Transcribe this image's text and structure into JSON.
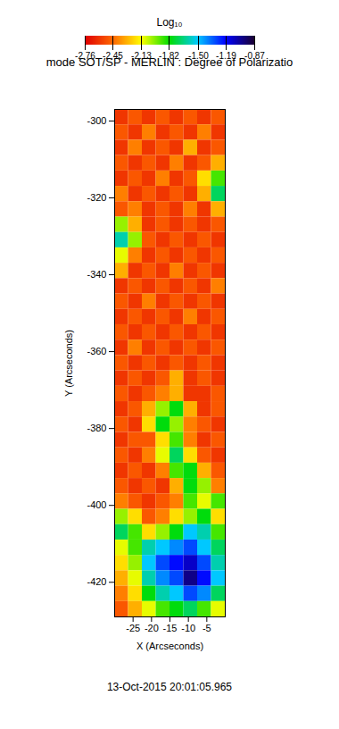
{
  "chart_data": {
    "type": "heatmap",
    "title": "mode SOT/SP - MERLIN : Degree of Polarizatio",
    "caption": "13-Oct-2015 20:01:05.965",
    "x_label": "X (Arcseconds)",
    "y_label": "Y (Arcseconds)",
    "xlim": [
      -30,
      0
    ],
    "ylim": [
      -429,
      -297
    ],
    "xticks": [
      -25,
      -20,
      -15,
      -10,
      -5
    ],
    "yticks": [
      -420,
      -400,
      -380,
      -360,
      -340,
      -320,
      -300
    ],
    "x_bins": [
      -30,
      -26.25,
      -22.5,
      -18.75,
      -15,
      -11.25,
      -7.5,
      -3.75,
      0
    ],
    "y_bins": [
      -297,
      -301,
      -305,
      -309,
      -313,
      -317,
      -321,
      -325,
      -329,
      -333,
      -337,
      -341,
      -345,
      -349,
      -353,
      -357,
      -361,
      -365,
      -369,
      -373,
      -377,
      -381,
      -385,
      -389,
      -393,
      -397,
      -401,
      -405,
      -409,
      -413,
      -417,
      -421,
      -425,
      -429
    ],
    "z": [
      [
        -2.6,
        -2.5,
        -2.6,
        -2.5,
        -2.6,
        -2.5,
        -2.6,
        -2.5
      ],
      [
        -2.5,
        -2.6,
        -2.4,
        -2.6,
        -2.5,
        -2.6,
        -2.4,
        -2.6
      ],
      [
        -2.6,
        -2.4,
        -2.6,
        -2.5,
        -2.6,
        -2.3,
        -2.6,
        -2.5
      ],
      [
        -2.5,
        -2.6,
        -2.5,
        -2.6,
        -2.4,
        -2.6,
        -2.5,
        -2.3
      ],
      [
        -2.6,
        -2.5,
        -2.6,
        -2.4,
        -2.6,
        -2.5,
        -2.2,
        -1.9
      ],
      [
        -2.4,
        -2.6,
        -2.5,
        -2.6,
        -2.5,
        -2.6,
        -2.3,
        -1.7
      ],
      [
        -2.5,
        -2.4,
        -2.6,
        -2.5,
        -2.6,
        -2.4,
        -2.6,
        -2.3
      ],
      [
        -2.0,
        -2.3,
        -2.6,
        -2.5,
        -2.6,
        -2.5,
        -2.6,
        -2.5
      ],
      [
        -1.6,
        -2.0,
        -2.5,
        -2.6,
        -2.5,
        -2.6,
        -2.5,
        -2.6
      ],
      [
        -2.1,
        -2.4,
        -2.6,
        -2.5,
        -2.6,
        -2.5,
        -2.6,
        -2.5
      ],
      [
        -2.3,
        -2.6,
        -2.5,
        -2.6,
        -2.4,
        -2.6,
        -2.5,
        -2.6
      ],
      [
        -2.6,
        -2.5,
        -2.6,
        -2.5,
        -2.6,
        -2.5,
        -2.6,
        -2.4
      ],
      [
        -2.5,
        -2.6,
        -2.4,
        -2.6,
        -2.5,
        -2.6,
        -2.5,
        -2.6
      ],
      [
        -2.6,
        -2.5,
        -2.6,
        -2.5,
        -2.6,
        -2.4,
        -2.6,
        -2.5
      ],
      [
        -2.5,
        -2.6,
        -2.5,
        -2.6,
        -2.5,
        -2.6,
        -2.5,
        -2.6
      ],
      [
        -2.6,
        -2.4,
        -2.6,
        -2.5,
        -2.6,
        -2.5,
        -2.6,
        -2.5
      ],
      [
        -2.5,
        -2.6,
        -2.5,
        -2.6,
        -2.5,
        -2.6,
        -2.5,
        -2.6
      ],
      [
        -2.6,
        -2.5,
        -2.6,
        -2.5,
        -2.3,
        -2.6,
        -2.5,
        -2.6
      ],
      [
        -2.5,
        -2.6,
        -2.5,
        -2.4,
        -2.3,
        -2.6,
        -2.6,
        -2.5
      ],
      [
        -2.6,
        -2.5,
        -2.3,
        -2.0,
        -1.8,
        -2.3,
        -2.6,
        -2.5
      ],
      [
        -2.5,
        -2.6,
        -2.2,
        -1.8,
        -2.0,
        -2.4,
        -2.5,
        -2.6
      ],
      [
        -2.6,
        -2.5,
        -2.5,
        -2.2,
        -1.9,
        -2.4,
        -2.6,
        -2.5
      ],
      [
        -2.5,
        -2.6,
        -2.4,
        -2.1,
        -1.7,
        -2.2,
        -2.5,
        -2.6
      ],
      [
        -2.6,
        -2.5,
        -2.6,
        -2.4,
        -1.9,
        -1.8,
        -2.3,
        -2.5
      ],
      [
        -2.5,
        -2.6,
        -2.5,
        -2.6,
        -2.3,
        -1.8,
        -2.0,
        -2.4
      ],
      [
        -2.4,
        -2.5,
        -2.6,
        -2.5,
        -2.4,
        -1.9,
        -2.1,
        -1.9
      ],
      [
        -2.0,
        -2.2,
        -2.5,
        -2.4,
        -2.2,
        -2.0,
        -1.8,
        -2.2
      ],
      [
        -1.7,
        -1.9,
        -2.2,
        -2.0,
        -1.8,
        -1.5,
        -1.6,
        -1.9
      ],
      [
        -2.1,
        -1.9,
        -1.6,
        -1.5,
        -1.4,
        -1.3,
        -1.5,
        -1.7
      ],
      [
        -2.2,
        -2.0,
        -1.5,
        -1.3,
        -1.2,
        -1.1,
        -1.3,
        -1.6
      ],
      [
        -2.3,
        -2.1,
        -1.6,
        -1.4,
        -1.3,
        -1.0,
        -1.2,
        -1.5
      ],
      [
        -2.4,
        -2.2,
        -1.8,
        -1.6,
        -1.5,
        -1.3,
        -1.4,
        -1.7
      ],
      [
        -2.5,
        -2.3,
        -2.1,
        -1.9,
        -1.8,
        -1.7,
        -1.9,
        -2.1
      ]
    ],
    "colorbar": {
      "label": "Log₁₀",
      "range": [
        -2.76,
        -0.87
      ],
      "ticks": [
        -2.76,
        -2.45,
        -2.13,
        -1.82,
        {
          "value": -1.5,
          "label": "-1.50"
        },
        -1.19,
        -0.87
      ]
    }
  }
}
